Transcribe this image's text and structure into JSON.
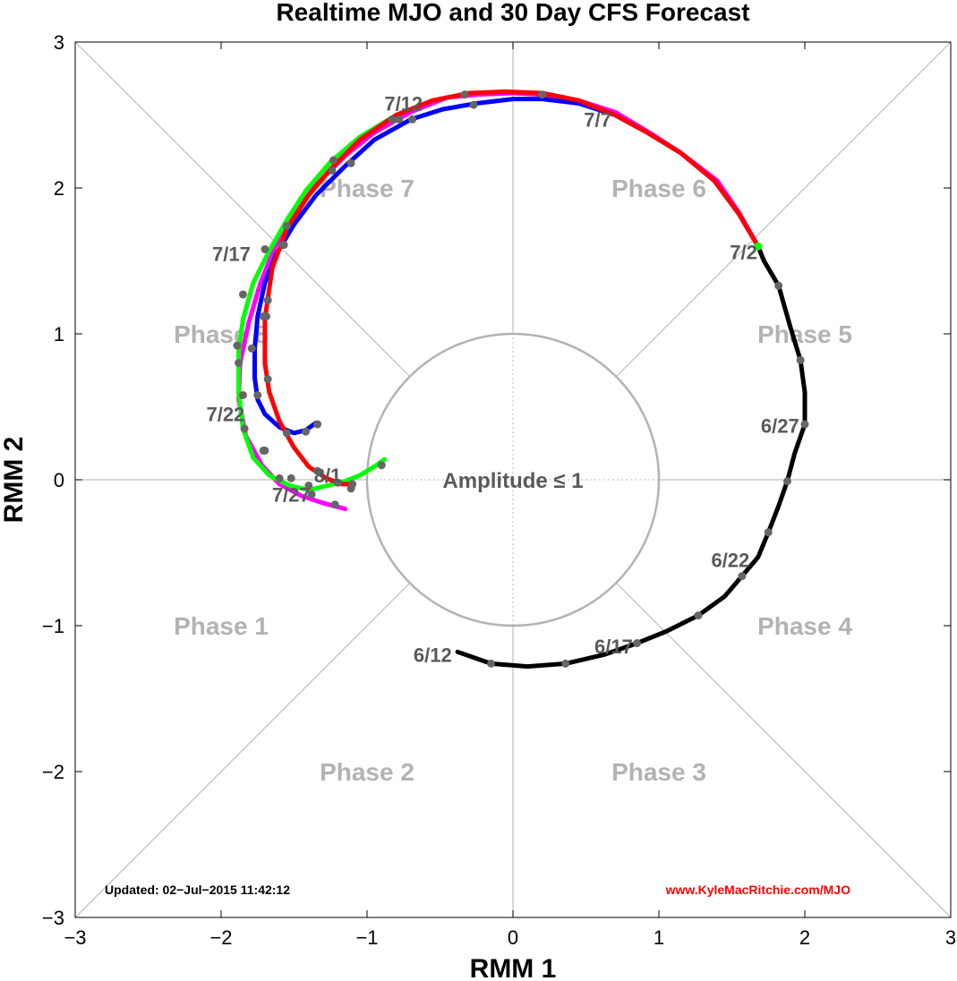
{
  "chart_data": {
    "type": "line",
    "title": "Realtime MJO and 30 Day CFS Forecast",
    "xlabel": "RMM 1",
    "ylabel": "RMM 2",
    "xlim": [
      -3,
      3
    ],
    "ylim": [
      -3,
      3
    ],
    "x_ticks": [
      "−3",
      "−2",
      "−1",
      "0",
      "1",
      "2",
      "3"
    ],
    "y_ticks": [
      "3",
      "2",
      "1",
      "0",
      "−1",
      "−2",
      "−3"
    ],
    "grid": "dotted at 0 and diagonals",
    "phases": [
      {
        "name": "Phase 1",
        "x": -2.0,
        "y": -1.0
      },
      {
        "name": "Phase 2",
        "x": -1.0,
        "y": -2.0
      },
      {
        "name": "Phase 3",
        "x": 1.0,
        "y": -2.0
      },
      {
        "name": "Phase 4",
        "x": 2.0,
        "y": -1.0
      },
      {
        "name": "Phase 5",
        "x": 2.0,
        "y": 1.0
      },
      {
        "name": "Phase 6",
        "x": 1.0,
        "y": 2.0
      },
      {
        "name": "Phase 7",
        "x": -1.0,
        "y": 2.0
      },
      {
        "name": "Phase 8",
        "x": -2.0,
        "y": 1.0
      }
    ],
    "amplitude_circle": {
      "radius": 1,
      "label": "Amplitude ≤ 1"
    },
    "series": [
      {
        "color": "#000000",
        "points": [
          [
            -0.38,
            -1.18
          ],
          [
            -0.15,
            -1.26
          ],
          [
            0.1,
            -1.28
          ],
          [
            0.36,
            -1.26
          ],
          [
            0.62,
            -1.2
          ],
          [
            0.85,
            -1.12
          ],
          [
            1.05,
            -1.04
          ],
          [
            1.27,
            -0.93
          ],
          [
            1.45,
            -0.8
          ],
          [
            1.57,
            -0.66
          ],
          [
            1.68,
            -0.53
          ],
          [
            1.75,
            -0.36
          ],
          [
            1.82,
            -0.18
          ],
          [
            1.88,
            -0.01
          ],
          [
            1.93,
            0.18
          ],
          [
            2.0,
            0.38
          ],
          [
            2.0,
            0.6
          ],
          [
            1.97,
            0.82
          ],
          [
            1.9,
            1.05
          ],
          [
            1.82,
            1.33
          ],
          [
            1.72,
            1.5
          ],
          [
            1.68,
            1.6
          ]
        ],
        "markers": [
          [
            -0.15,
            -1.26
          ],
          [
            0.36,
            -1.26
          ],
          [
            0.85,
            -1.12
          ],
          [
            1.27,
            -0.93
          ],
          [
            1.57,
            -0.66
          ],
          [
            1.75,
            -0.36
          ],
          [
            1.88,
            -0.01
          ],
          [
            2.0,
            0.38
          ],
          [
            1.97,
            0.82
          ],
          [
            1.82,
            1.33
          ]
        ],
        "date_labels": [
          {
            "text": "6/12",
            "x": -0.55,
            "y": -1.2
          },
          {
            "text": "6/17",
            "x": 0.69,
            "y": -1.14
          },
          {
            "text": "6/22",
            "x": 1.49,
            "y": -0.55
          },
          {
            "text": "6/27",
            "x": 1.83,
            "y": 0.37
          },
          {
            "text": "7/2",
            "x": 1.58,
            "y": 1.56
          }
        ]
      },
      {
        "color": "#ff00ff",
        "points": [
          [
            1.68,
            1.6
          ],
          [
            1.55,
            1.83
          ],
          [
            1.4,
            2.05
          ],
          [
            1.15,
            2.24
          ],
          [
            0.95,
            2.37
          ],
          [
            0.7,
            2.52
          ],
          [
            0.45,
            2.6
          ],
          [
            0.2,
            2.64
          ],
          [
            0.0,
            2.65
          ],
          [
            -0.25,
            2.64
          ],
          [
            -0.45,
            2.62
          ],
          [
            -0.7,
            2.52
          ],
          [
            -0.95,
            2.38
          ],
          [
            -1.15,
            2.22
          ],
          [
            -1.35,
            2.02
          ],
          [
            -1.5,
            1.82
          ],
          [
            -1.63,
            1.6
          ],
          [
            -1.73,
            1.35
          ],
          [
            -1.81,
            1.08
          ],
          [
            -1.87,
            0.8
          ],
          [
            -1.88,
            0.55
          ],
          [
            -1.83,
            0.3
          ],
          [
            -1.72,
            0.1
          ],
          [
            -1.6,
            -0.03
          ],
          [
            -1.45,
            -0.11
          ],
          [
            -1.3,
            -0.16
          ],
          [
            -1.15,
            -0.2
          ]
        ],
        "markers": [
          [
            -1.88,
            0.8
          ],
          [
            -1.84,
            0.35
          ],
          [
            -1.7,
            0.2
          ],
          [
            -1.52,
            0.01
          ],
          [
            -1.38,
            -0.1
          ],
          [
            -1.22,
            -0.17
          ]
        ]
      },
      {
        "color": "#00ff00",
        "points": [
          [
            -0.88,
            0.14
          ],
          [
            -0.95,
            0.09
          ],
          [
            -1.05,
            0.03
          ],
          [
            -1.15,
            -0.01
          ],
          [
            -1.27,
            -0.04
          ],
          [
            -1.4,
            -0.07
          ],
          [
            -1.53,
            -0.04
          ],
          [
            -1.67,
            0.03
          ],
          [
            -1.78,
            0.15
          ],
          [
            -1.85,
            0.35
          ],
          [
            -1.88,
            0.6
          ],
          [
            -1.88,
            0.88
          ],
          [
            -1.85,
            1.1
          ],
          [
            -1.78,
            1.35
          ],
          [
            -1.68,
            1.55
          ],
          [
            -1.55,
            1.78
          ],
          [
            -1.42,
            1.98
          ],
          [
            -1.25,
            2.18
          ],
          [
            -1.05,
            2.35
          ],
          [
            -0.85,
            2.47
          ]
        ],
        "markers": [
          [
            -0.9,
            0.1
          ],
          [
            -1.1,
            -0.03
          ],
          [
            -1.4,
            -0.04
          ],
          [
            -1.6,
            0.01
          ],
          [
            -1.71,
            0.2
          ],
          [
            -1.85,
            0.58
          ],
          [
            -1.89,
            0.92
          ],
          [
            -1.85,
            1.27
          ],
          [
            -1.7,
            1.58
          ],
          [
            -1.55,
            1.74
          ],
          [
            -1.23,
            2.19
          ],
          [
            -0.83,
            2.47
          ]
        ]
      },
      {
        "color": "#0000ff",
        "points": [
          [
            1.68,
            1.6
          ],
          [
            1.55,
            1.82
          ],
          [
            1.38,
            2.05
          ],
          [
            1.15,
            2.24
          ],
          [
            0.92,
            2.38
          ],
          [
            0.7,
            2.5
          ],
          [
            0.45,
            2.58
          ],
          [
            0.2,
            2.61
          ],
          [
            0.0,
            2.61
          ],
          [
            -0.25,
            2.58
          ],
          [
            -0.48,
            2.54
          ],
          [
            -0.7,
            2.47
          ],
          [
            -0.95,
            2.33
          ],
          [
            -1.15,
            2.15
          ],
          [
            -1.35,
            1.95
          ],
          [
            -1.5,
            1.75
          ],
          [
            -1.62,
            1.55
          ],
          [
            -1.7,
            1.35
          ],
          [
            -1.75,
            1.12
          ],
          [
            -1.77,
            0.9
          ],
          [
            -1.77,
            0.7
          ],
          [
            -1.75,
            0.55
          ],
          [
            -1.7,
            0.45
          ],
          [
            -1.6,
            0.36
          ],
          [
            -1.5,
            0.32
          ],
          [
            -1.42,
            0.34
          ],
          [
            -1.35,
            0.39
          ]
        ],
        "markers": [
          [
            -0.27,
            2.57
          ],
          [
            -0.69,
            2.47
          ],
          [
            -1.11,
            2.17
          ],
          [
            -1.58,
            1.61
          ],
          [
            -1.71,
            1.12
          ],
          [
            -1.79,
            0.9
          ],
          [
            -1.75,
            0.58
          ],
          [
            -1.55,
            0.32
          ],
          [
            -1.42,
            0.33
          ],
          [
            -1.34,
            0.38
          ]
        ]
      },
      {
        "color": "#ff0000",
        "points": [
          [
            1.68,
            1.6
          ],
          [
            1.55,
            1.82
          ],
          [
            1.38,
            2.05
          ],
          [
            1.15,
            2.24
          ],
          [
            0.92,
            2.38
          ],
          [
            0.7,
            2.5
          ],
          [
            0.45,
            2.6
          ],
          [
            0.2,
            2.65
          ],
          [
            -0.05,
            2.66
          ],
          [
            -0.3,
            2.65
          ],
          [
            -0.55,
            2.6
          ],
          [
            -0.8,
            2.5
          ],
          [
            -1.05,
            2.33
          ],
          [
            -1.25,
            2.13
          ],
          [
            -1.4,
            1.95
          ],
          [
            -1.55,
            1.72
          ],
          [
            -1.65,
            1.45
          ],
          [
            -1.7,
            1.1
          ],
          [
            -1.7,
            0.8
          ],
          [
            -1.67,
            0.6
          ],
          [
            -1.6,
            0.4
          ],
          [
            -1.5,
            0.22
          ],
          [
            -1.4,
            0.09
          ],
          [
            -1.28,
            0.01
          ],
          [
            -1.17,
            -0.03
          ],
          [
            -1.1,
            -0.03
          ]
        ],
        "markers": [
          [
            0.2,
            2.64
          ],
          [
            -0.33,
            2.64
          ],
          [
            -0.78,
            2.47
          ],
          [
            -1.24,
            2.12
          ],
          [
            -1.57,
            1.61
          ],
          [
            -1.68,
            1.23
          ],
          [
            -1.69,
            1.12
          ],
          [
            -1.68,
            0.69
          ],
          [
            -1.34,
            0.06
          ],
          [
            -1.2,
            -0.02
          ],
          [
            -1.11,
            -0.06
          ]
        ],
        "date_labels": [
          {
            "text": "7/7",
            "x": 0.58,
            "y": 2.47
          },
          {
            "text": "7/12",
            "x": -0.75,
            "y": 2.58
          },
          {
            "text": "7/17",
            "x": -1.93,
            "y": 1.55
          },
          {
            "text": "7/22",
            "x": -1.97,
            "y": 0.45
          },
          {
            "text": "7/27",
            "x": -1.52,
            "y": -0.1
          },
          {
            "text": "8/1",
            "x": -1.27,
            "y": 0.03
          }
        ]
      }
    ],
    "start_marker": {
      "x": 1.68,
      "y": 1.6,
      "color": "#00ff00"
    }
  },
  "footer": {
    "updated": "Updated: 02−Jul−2015 11:42:12",
    "website": "www.KyleMacRitchie.com/MJO"
  }
}
